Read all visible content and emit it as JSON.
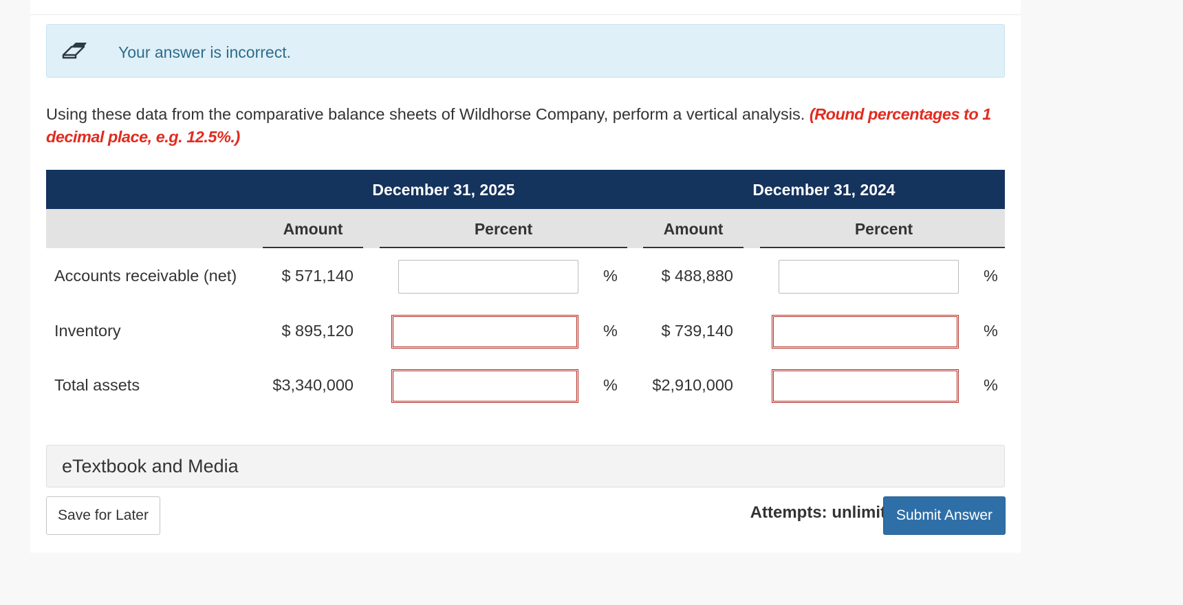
{
  "alert": {
    "icon": "eraser-icon",
    "text": "Your answer is incorrect."
  },
  "question": {
    "text": "Using these data from the comparative balance sheets of Wildhorse Company, perform a vertical analysis. ",
    "hint": "(Round percentages to 1 decimal place, e.g. 12.5%.)"
  },
  "table": {
    "dates": [
      "December 31, 2025",
      "December 31, 2024"
    ],
    "columns": {
      "amount": "Amount",
      "percent": "Percent"
    },
    "percent_sign": "%",
    "rows": [
      {
        "label": "Accounts receivable (net)",
        "amount_2025": "$ 571,140",
        "percent_2025": "",
        "amount_2024": "$ 488,880",
        "percent_2024": "",
        "state_2025": "neutral",
        "state_2024": "neutral"
      },
      {
        "label": "Inventory",
        "amount_2025": "$ 895,120",
        "percent_2025": "",
        "amount_2024": "$ 739,140",
        "percent_2024": "",
        "state_2025": "incorrect",
        "state_2024": "incorrect"
      },
      {
        "label": "Total assets",
        "amount_2025": "$3,340,000",
        "percent_2025": "",
        "amount_2024": "$2,910,000",
        "percent_2024": "",
        "state_2025": "incorrect",
        "state_2024": "incorrect"
      }
    ]
  },
  "etextbook": {
    "label": "eTextbook and Media"
  },
  "footer": {
    "save_label": "Save for Later",
    "attempts_label": "Attempts: unlimited",
    "submit_label": "Submit Answer"
  },
  "colors": {
    "header_band": "#14335d",
    "error_border": "#b22b24",
    "submit_button": "#2f6fa8",
    "hint_text": "#e12b1f"
  }
}
